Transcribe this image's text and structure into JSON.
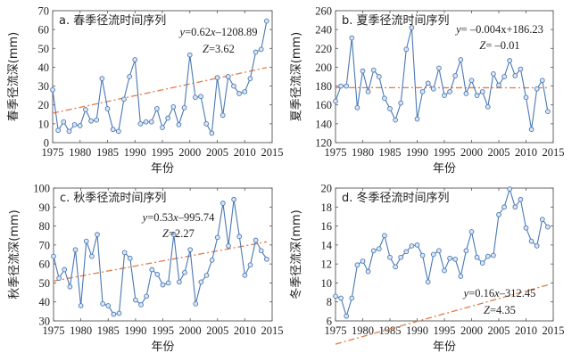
{
  "chart_data": [
    {
      "id": "a",
      "type": "line",
      "title": "a. 春季径流时间序列",
      "xlabel": "年份",
      "ylabel": "春季径流深(mm)",
      "xlim": [
        1975,
        2015
      ],
      "ylim": [
        0,
        70
      ],
      "xticks": [
        1975,
        1980,
        1985,
        1990,
        1995,
        2000,
        2005,
        2010,
        2015
      ],
      "yticks": [
        0,
        10,
        20,
        30,
        40,
        50,
        60,
        70
      ],
      "x": [
        1975,
        1976,
        1977,
        1978,
        1979,
        1980,
        1981,
        1982,
        1983,
        1984,
        1985,
        1986,
        1987,
        1988,
        1989,
        1990,
        1991,
        1992,
        1993,
        1994,
        1995,
        1996,
        1997,
        1998,
        1999,
        2000,
        2001,
        2002,
        2003,
        2004,
        2005,
        2006,
        2007,
        2008,
        2009,
        2010,
        2011,
        2012,
        2013,
        2014
      ],
      "values": [
        28,
        6.5,
        11,
        6,
        9.5,
        9,
        17.5,
        11.5,
        12,
        34,
        18,
        7,
        6,
        23,
        35,
        44,
        10,
        11,
        11,
        18,
        8,
        13,
        19,
        9.5,
        18.5,
        46.5,
        24,
        24.5,
        10,
        5,
        34.5,
        14.5,
        35,
        30,
        26,
        27,
        34,
        48,
        49.5,
        64.5
      ],
      "trend": {
        "slope": 0.62,
        "intercept": -1208.89
      },
      "annotation": {
        "equation_prefix": "y",
        "equation_rest": "=0.62",
        "equation_var": "x",
        "equation_tail": "–1208.89",
        "z_label": "Z",
        "z_value": "=3.62"
      },
      "annotation_position": "top-right"
    },
    {
      "id": "b",
      "type": "line",
      "title": "b. 夏季径流时间序列",
      "xlabel": "年份",
      "ylabel": "夏季径流深(mm)",
      "xlim": [
        1975,
        2015
      ],
      "ylim": [
        120,
        260
      ],
      "xticks": [
        1975,
        1980,
        1985,
        1990,
        1995,
        2000,
        2005,
        2010,
        2015
      ],
      "yticks": [
        120,
        140,
        160,
        180,
        200,
        220,
        240,
        260
      ],
      "x": [
        1975,
        1976,
        1977,
        1978,
        1979,
        1980,
        1981,
        1982,
        1983,
        1984,
        1985,
        1986,
        1987,
        1988,
        1989,
        1990,
        1991,
        1992,
        1993,
        1994,
        1995,
        1996,
        1997,
        1998,
        1999,
        2000,
        2001,
        2002,
        2003,
        2004,
        2005,
        2006,
        2007,
        2008,
        2009,
        2010,
        2011,
        2012,
        2013,
        2014
      ],
      "values": [
        164,
        180,
        180,
        231,
        157,
        196,
        174,
        197,
        190,
        167,
        156,
        144,
        162,
        219,
        242,
        145,
        174,
        183,
        177,
        199,
        170,
        174,
        191,
        208,
        172,
        186,
        170,
        174,
        158,
        193,
        181,
        190,
        207,
        191,
        198,
        168,
        134,
        177,
        186,
        153
      ],
      "trend": {
        "slope": -0.004,
        "intercept": 186.23
      },
      "annotation": {
        "equation_prefix": "y",
        "equation_rest": "= –0.004x+186.23",
        "equation_var": "",
        "equation_tail": "",
        "z_label": "Z",
        "z_value": "= –0.01"
      },
      "annotation_position": "top-right"
    },
    {
      "id": "c",
      "type": "line",
      "title": "c. 秋季径流时间序列",
      "xlabel": "年份",
      "ylabel": "秋季径流深(mm)",
      "xlim": [
        1975,
        2015
      ],
      "ylim": [
        30,
        100
      ],
      "xticks": [
        1975,
        1980,
        1985,
        1990,
        1995,
        2000,
        2005,
        2010,
        2015
      ],
      "yticks": [
        30,
        40,
        50,
        60,
        70,
        80,
        90,
        100
      ],
      "x": [
        1975,
        1976,
        1977,
        1978,
        1979,
        1980,
        1981,
        1982,
        1983,
        1984,
        1985,
        1986,
        1987,
        1988,
        1989,
        1990,
        1991,
        1992,
        1993,
        1994,
        1995,
        1996,
        1997,
        1998,
        1999,
        2000,
        2001,
        2002,
        2003,
        2004,
        2005,
        2006,
        2007,
        2008,
        2009,
        2010,
        2011,
        2012,
        2013,
        2014
      ],
      "values": [
        64,
        52.5,
        57,
        48,
        67.5,
        38,
        72,
        64,
        75.5,
        39,
        38,
        33.5,
        34,
        66,
        63,
        41,
        38.5,
        43,
        57,
        54.5,
        49,
        50,
        75.5,
        50.5,
        55.5,
        67.5,
        39,
        50.5,
        54,
        62,
        74,
        92,
        69.5,
        94,
        74.5,
        54,
        59.5,
        72.5,
        67,
        62.5
      ],
      "trend": {
        "slope": 0.53,
        "intercept": -995.74
      },
      "annotation": {
        "equation_prefix": "y",
        "equation_rest": "=0.53",
        "equation_var": "x",
        "equation_tail": "–995.74",
        "z_label": "Z",
        "z_value": "=2.27"
      },
      "annotation_position": "top-center"
    },
    {
      "id": "d",
      "type": "line",
      "title": "d. 冬季径流时间序列",
      "xlabel": "年份",
      "ylabel": "冬季径流深(mm)",
      "xlim": [
        1975,
        2015
      ],
      "ylim": [
        6,
        20
      ],
      "xticks": [
        1975,
        1980,
        1985,
        1990,
        1995,
        2000,
        2005,
        2010,
        2015
      ],
      "yticks": [
        6,
        8,
        10,
        12,
        14,
        16,
        18,
        20
      ],
      "x": [
        1975,
        1976,
        1977,
        1978,
        1979,
        1980,
        1981,
        1982,
        1983,
        1984,
        1985,
        1986,
        1987,
        1988,
        1989,
        1990,
        1991,
        1992,
        1993,
        1994,
        1995,
        1996,
        1997,
        1998,
        1999,
        2000,
        2001,
        2002,
        2003,
        2004,
        2005,
        2006,
        2007,
        2008,
        2009,
        2010,
        2011,
        2012,
        2013,
        2014
      ],
      "values": [
        8.6,
        8.4,
        6.5,
        8.4,
        11.9,
        12.3,
        11.2,
        13.4,
        13.6,
        15,
        12.7,
        11.7,
        12.7,
        13.3,
        13.9,
        14,
        12.9,
        10.1,
        13,
        13.4,
        11.3,
        12.6,
        12.5,
        10.7,
        13.4,
        15.4,
        12.7,
        12.1,
        12.8,
        12.9,
        17.2,
        18,
        19.9,
        18,
        18.8,
        15.8,
        14.4,
        13.9,
        16.7,
        15.9
      ],
      "trend": {
        "slope": 0.16,
        "intercept": -312.45
      },
      "annotation": {
        "equation_prefix": "y",
        "equation_rest": "=0.16",
        "equation_var": "x",
        "equation_tail": "–312.45",
        "z_label": "Z",
        "z_value": "=4.35"
      },
      "annotation_position": "bottom-right"
    }
  ],
  "colors": {
    "series": "#4a78b5",
    "marker_fill": "#dbe6f3",
    "trend": "#e07a45",
    "frame": "#555555"
  }
}
